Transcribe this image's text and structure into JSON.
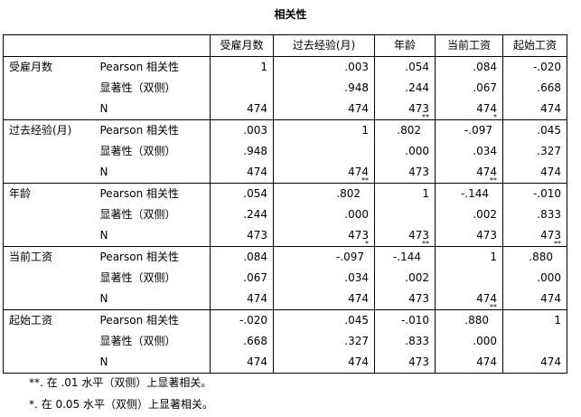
{
  "title": "相关性",
  "columns": [
    "受雇月数",
    "过去经验(月)",
    "年龄",
    "当前工资",
    "起始工资"
  ],
  "stat_labels": [
    "Pearson 相关性",
    "显著性（双侧）",
    "N"
  ],
  "rows": [
    {
      "variable": "受雇月数",
      "pearson": [
        "1",
        ".003",
        ".054",
        ".084",
        "-.020"
      ],
      "pearson_marks": [
        "",
        "",
        "",
        "",
        ""
      ],
      "sig": [
        "",
        ".948",
        ".244",
        ".067",
        ".668"
      ],
      "n": [
        "474",
        "474",
        "473",
        "474",
        "474"
      ]
    },
    {
      "variable": "过去经验(月)",
      "pearson": [
        ".003",
        "1",
        ".802",
        "-.097",
        ".045"
      ],
      "pearson_marks": [
        "",
        "",
        "**",
        "*",
        ""
      ],
      "sig": [
        ".948",
        "",
        ".000",
        ".034",
        ".327"
      ],
      "n": [
        "474",
        "474",
        "473",
        "474",
        "474"
      ]
    },
    {
      "variable": "年龄",
      "pearson": [
        ".054",
        ".802",
        "1",
        "-.144",
        "-.010"
      ],
      "pearson_marks": [
        "",
        "**",
        "",
        "**",
        ""
      ],
      "sig": [
        ".244",
        ".000",
        "",
        ".002",
        ".833"
      ],
      "n": [
        "473",
        "473",
        "473",
        "473",
        "473"
      ]
    },
    {
      "variable": "当前工资",
      "pearson": [
        ".084",
        "-.097",
        "-.144",
        "1",
        ".880"
      ],
      "pearson_marks": [
        "",
        "*",
        "**",
        "",
        "**"
      ],
      "sig": [
        ".067",
        ".034",
        ".002",
        "",
        ".000"
      ],
      "n": [
        "474",
        "474",
        "473",
        "474",
        "474"
      ]
    },
    {
      "variable": "起始工资",
      "pearson": [
        "-.020",
        ".045",
        "-.010",
        ".880",
        "1"
      ],
      "pearson_marks": [
        "",
        "",
        "",
        "**",
        ""
      ],
      "sig": [
        ".668",
        ".327",
        ".833",
        ".000",
        ""
      ],
      "n": [
        "474",
        "474",
        "473",
        "474",
        "474"
      ]
    }
  ],
  "footnotes": {
    "f1": "**. 在 .01 水平（双侧）上显著相关。",
    "f2": "*. 在 0.05 水平（双侧）上显著相关。"
  }
}
